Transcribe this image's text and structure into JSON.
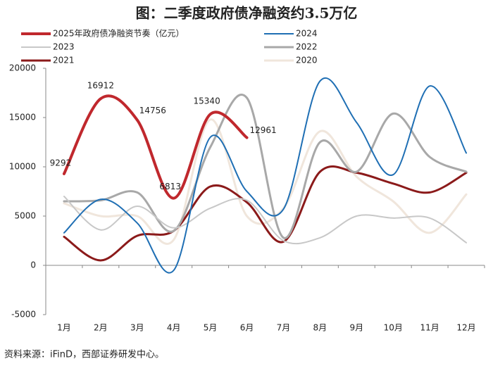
{
  "chart_data": {
    "type": "line",
    "title": "图：二季度政府债净融资约3.5万亿",
    "source": "资料来源：iFinD，西部证券研发中心。",
    "categories": [
      "1月",
      "2月",
      "3月",
      "4月",
      "5月",
      "6月",
      "7月",
      "8月",
      "9月",
      "10月",
      "11月",
      "12月"
    ],
    "ylim": [
      -5000,
      20000
    ],
    "yticks": [
      -5000,
      0,
      5000,
      10000,
      15000,
      20000
    ],
    "series": [
      {
        "name": "2025年政府债净融资节奏（亿元）",
        "color": "#c0282d",
        "width": 4,
        "data_labels": true,
        "values": [
          9292,
          16912,
          14756,
          6813,
          15340,
          12961,
          null,
          null,
          null,
          null,
          null,
          null
        ]
      },
      {
        "name": "2024",
        "color": "#1f6fb4",
        "width": 2,
        "values": [
          3300,
          6700,
          4300,
          -500,
          13000,
          7500,
          5700,
          18700,
          14500,
          9200,
          18200,
          11400
        ]
      },
      {
        "name": "2023",
        "color": "#c8c8c8",
        "width": 2,
        "values": [
          7000,
          3600,
          6000,
          3800,
          5800,
          6600,
          2500,
          2800,
          5000,
          4800,
          4800,
          2300
        ]
      },
      {
        "name": "2022",
        "color": "#a8a8a8",
        "width": 3,
        "values": [
          6500,
          6600,
          7400,
          3500,
          12000,
          17000,
          2800,
          12500,
          9500,
          15400,
          11000,
          9500
        ]
      },
      {
        "name": "2021",
        "color": "#8b1a1a",
        "width": 3,
        "values": [
          2900,
          500,
          3000,
          3500,
          8000,
          6400,
          2400,
          9500,
          9400,
          8300,
          7400,
          9400
        ]
      },
      {
        "name": "2020",
        "color": "#f0e6dc",
        "width": 3,
        "values": [
          6300,
          5000,
          5000,
          2600,
          14800,
          5000,
          5800,
          13600,
          9000,
          6500,
          3300,
          7200
        ]
      }
    ]
  }
}
